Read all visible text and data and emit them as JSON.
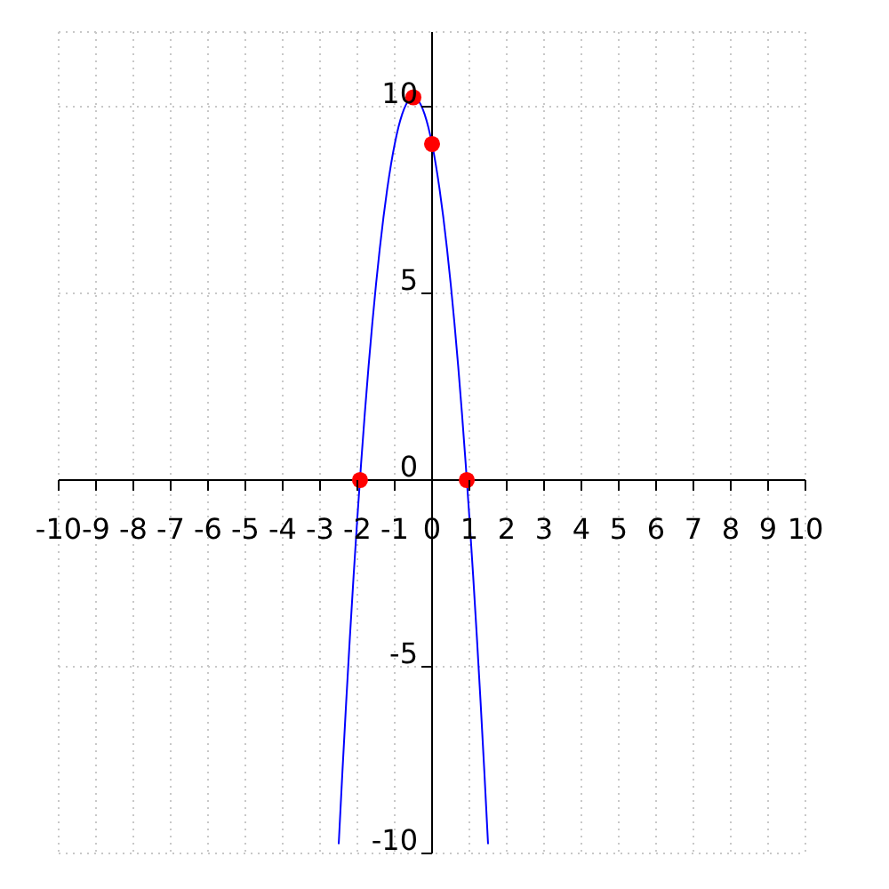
{
  "chart_data": {
    "type": "line",
    "xlim": [
      -10,
      10
    ],
    "ylim": [
      -10,
      12
    ],
    "xticks": [
      -10,
      -9,
      -8,
      -7,
      -6,
      -5,
      -4,
      -3,
      -2,
      -1,
      0,
      1,
      2,
      3,
      4,
      5,
      6,
      7,
      8,
      9,
      10
    ],
    "yticks": [
      -10,
      -5,
      0,
      5,
      10
    ],
    "grid": true,
    "series": [
      {
        "color": "#0000ff",
        "marker": "none",
        "line_style": "solid",
        "x": [
          -2.5,
          -2.4,
          -2.3,
          -2.2,
          -2.1,
          -2.0,
          -1.9,
          -1.8,
          -1.7,
          -1.6,
          -1.5,
          -1.4,
          -1.3,
          -1.2,
          -1.1,
          -1.0,
          -0.9,
          -0.8,
          -0.7,
          -0.6,
          -0.5,
          -0.4,
          -0.3,
          -0.2,
          -0.1,
          0,
          0.1,
          0.2,
          0.3,
          0.4,
          0.5,
          0.6,
          0.7,
          0.8,
          0.9,
          1.0,
          1.1,
          1.2,
          1.3,
          1.4,
          1.5
        ],
        "values": [
          -9.75,
          -7.8,
          -5.95,
          -4.2,
          -2.55,
          -1,
          0.45,
          1.8,
          3.05,
          4.2,
          5.25,
          6.2,
          7.05,
          7.8,
          8.45,
          9,
          9.45,
          9.8,
          10.05,
          10.2,
          10.25,
          10.2,
          10.05,
          9.8,
          9.45,
          9,
          8.45,
          7.8,
          7.05,
          6.2,
          5.25,
          4.2,
          3.05,
          1.8,
          0.45,
          -1,
          -2.55,
          -4.2,
          -5.95,
          -7.8,
          -9.75
        ]
      },
      {
        "type": "scatter",
        "color": "#ff0000",
        "marker": "circle",
        "x": [
          -1.93,
          0.93,
          0,
          -0.5
        ],
        "values": [
          0,
          0,
          9,
          10.25
        ]
      }
    ]
  }
}
